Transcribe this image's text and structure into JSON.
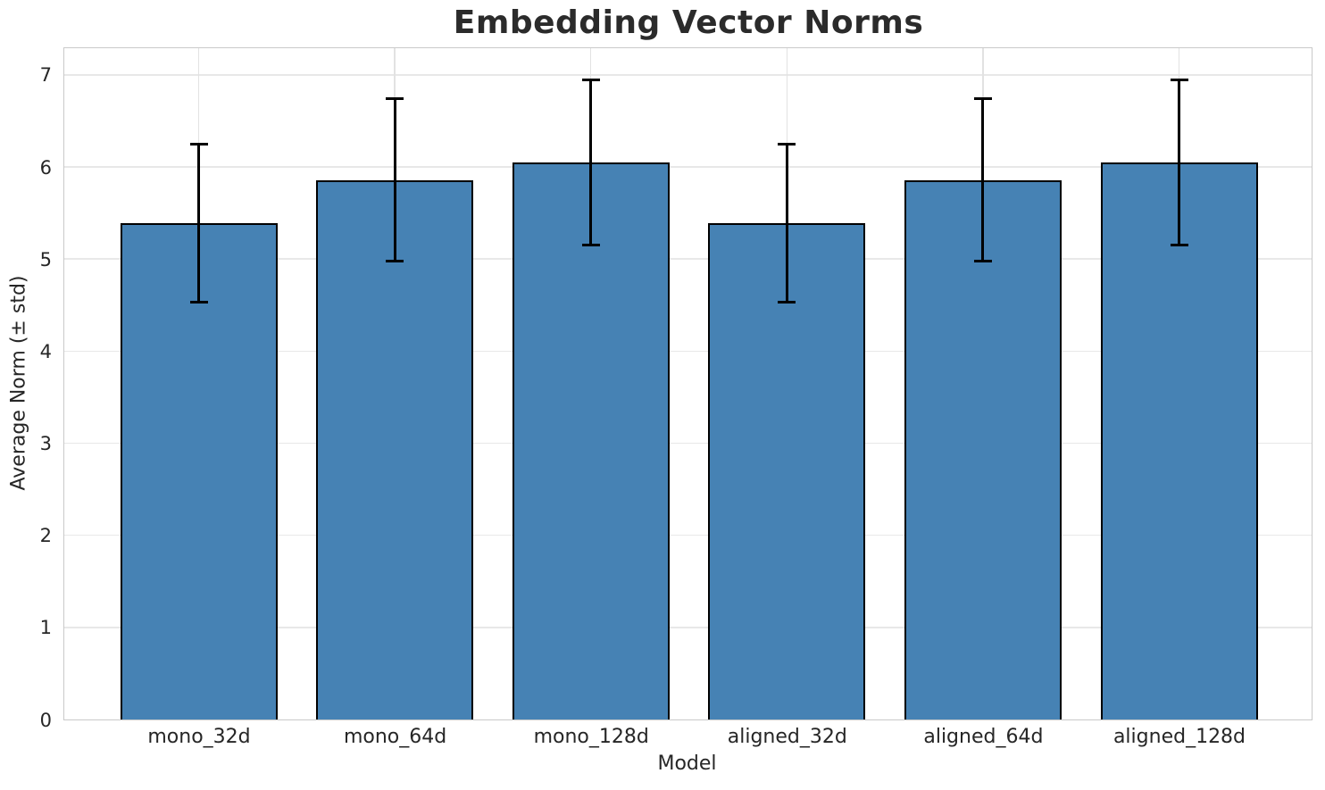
{
  "title": "Embedding Vector Norms",
  "chart_data": {
    "type": "bar",
    "title": "Embedding Vector Norms",
    "xlabel": "Model",
    "ylabel": "Average Norm (± std)",
    "categories": [
      "mono_32d",
      "mono_64d",
      "mono_128d",
      "aligned_32d",
      "aligned_64d",
      "aligned_128d"
    ],
    "values": [
      5.39,
      5.86,
      6.05,
      5.39,
      5.86,
      6.05
    ],
    "errors": [
      0.86,
      0.88,
      0.9,
      0.86,
      0.88,
      0.9
    ],
    "ylim": [
      0,
      7.29
    ],
    "yticks": [
      "0",
      "1",
      "2",
      "3",
      "4",
      "5",
      "6",
      "7"
    ],
    "grid": true,
    "legend": null,
    "colors": {
      "bar_fill": "#4682b4",
      "bar_edge": "#000000",
      "error_bar": "#000000",
      "grid_h": "#e8e8e8",
      "grid_v": "#e2e2e2",
      "spine": "#c9c9c9",
      "text": "#262626",
      "title_text": "#2b2b2b",
      "background": "#ffffff"
    }
  }
}
